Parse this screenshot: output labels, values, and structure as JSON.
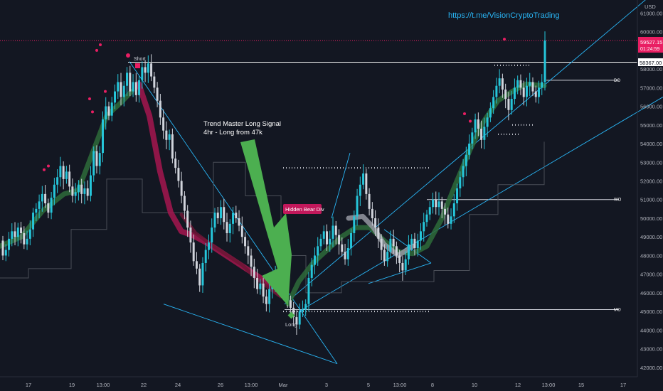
{
  "header": {
    "url": "https://t.me/VisionCryptoTrading",
    "currency": "USD"
  },
  "chart_data": {
    "type": "candlestick",
    "price_axis": {
      "ticks": [
        "61000.00",
        "60000.00",
        "59000.00",
        "58000.00",
        "57000.00",
        "56000.00",
        "55000.00",
        "54000.00",
        "53000.00",
        "52000.00",
        "51000.00",
        "50000.00",
        "49000.00",
        "48000.00",
        "47000.00",
        "46000.00",
        "45000.00",
        "44000.00",
        "43000.00",
        "42000.00"
      ],
      "range": [
        41500,
        61700
      ]
    },
    "time_axis": {
      "ticks": [
        "17",
        "19",
        "13:00",
        "22",
        "24",
        "26",
        "13:00",
        "Mar",
        "3",
        "5",
        "13:00",
        "8",
        "10",
        "12",
        "13:00",
        "15",
        "17"
      ]
    },
    "price_labels": {
      "last_price": "59527.15",
      "countdown": "01:24:59",
      "level": "58367.00"
    },
    "levels": [
      {
        "label": "DO",
        "price": 57400
      },
      {
        "label": "WO",
        "price": 51000
      },
      {
        "label": "MO",
        "price": 45100
      },
      {
        "label": "",
        "price": 58367
      }
    ],
    "annotations": {
      "short_label": "Short",
      "long_label": "Long",
      "signal_line1": "Trend Master Long Signal",
      "signal_line2": "4hr - Long from 47k",
      "divergence_label": "Hidden Bear Div"
    },
    "candles_ohlc": [
      [
        48800,
        48000
      ],
      [
        48000,
        48300
      ],
      [
        48300,
        48900
      ],
      [
        48900,
        49300
      ],
      [
        49300,
        49000
      ],
      [
        49000,
        49500
      ],
      [
        49500,
        49200
      ],
      [
        49200,
        48600
      ],
      [
        48600,
        48900
      ],
      [
        48900,
        49400
      ],
      [
        49400,
        50300
      ],
      [
        50300,
        50500
      ],
      [
        50500,
        50900
      ],
      [
        50900,
        51300
      ],
      [
        51300,
        50800
      ],
      [
        50800,
        50300
      ],
      [
        50300,
        51100
      ],
      [
        51100,
        51800
      ],
      [
        51800,
        52200
      ],
      [
        52200,
        52800
      ],
      [
        52800,
        52100
      ],
      [
        52100,
        52500
      ],
      [
        52500,
        51700
      ],
      [
        51700,
        51200
      ],
      [
        51200,
        51400
      ],
      [
        51400,
        51800
      ],
      [
        51800,
        51300
      ],
      [
        51300,
        51600
      ],
      [
        51600,
        51200
      ],
      [
        51200,
        52300
      ],
      [
        52300,
        53600
      ],
      [
        53600,
        52800
      ],
      [
        52800,
        53500
      ],
      [
        53500,
        55300
      ],
      [
        55300,
        56000
      ],
      [
        56000,
        55500
      ],
      [
        55500,
        56200
      ],
      [
        56200,
        56800
      ],
      [
        56800,
        57300
      ],
      [
        57300,
        56500
      ],
      [
        56500,
        57100
      ],
      [
        57100,
        57800
      ],
      [
        57800,
        56800
      ],
      [
        56800,
        57300
      ],
      [
        57300,
        56600
      ],
      [
        56600,
        57400
      ],
      [
        57400,
        58100
      ],
      [
        58100,
        57800
      ],
      [
        57800,
        58300
      ],
      [
        58300,
        57600
      ],
      [
        57600,
        57000
      ],
      [
        57000,
        56300
      ],
      [
        56300,
        55400
      ],
      [
        55400,
        54700
      ],
      [
        54700,
        54200
      ],
      [
        54200,
        54500
      ],
      [
        54500,
        53200
      ],
      [
        53200,
        52700
      ],
      [
        52700,
        52000
      ],
      [
        52000,
        51200
      ],
      [
        51200,
        50400
      ],
      [
        50400,
        49500
      ],
      [
        49500,
        48700
      ],
      [
        48700,
        47700
      ],
      [
        47700,
        47300
      ],
      [
        47300,
        46400
      ],
      [
        46400,
        47600
      ],
      [
        47600,
        48300
      ],
      [
        48300,
        48700
      ],
      [
        48700,
        49500
      ],
      [
        49500,
        50300
      ],
      [
        50300,
        50000
      ],
      [
        50000,
        50600
      ],
      [
        50600,
        49800
      ],
      [
        49800,
        49200
      ],
      [
        49200,
        49700
      ],
      [
        49700,
        50300
      ],
      [
        50300,
        50000
      ],
      [
        50000,
        49600
      ],
      [
        49600,
        49000
      ],
      [
        49000,
        48500
      ],
      [
        48500,
        48000
      ],
      [
        48000,
        47400
      ],
      [
        47400,
        46800
      ],
      [
        46800,
        46200
      ],
      [
        46200,
        46500
      ],
      [
        46500,
        45800
      ],
      [
        45800,
        45400
      ],
      [
        45400,
        46200
      ],
      [
        46200,
        46600
      ],
      [
        46600,
        47200
      ],
      [
        47200,
        47000
      ],
      [
        47000,
        46700
      ],
      [
        46700,
        46200
      ],
      [
        46200,
        45600
      ],
      [
        45600,
        45200
      ],
      [
        45200,
        44700
      ],
      [
        44700,
        44300
      ],
      [
        44300,
        45000
      ],
      [
        45000,
        45100
      ],
      [
        45100,
        45400
      ],
      [
        45400,
        46800
      ],
      [
        46800,
        47500
      ],
      [
        47500,
        48000
      ],
      [
        48000,
        48500
      ],
      [
        48500,
        48900
      ],
      [
        48900,
        49300
      ],
      [
        49300,
        48600
      ],
      [
        48600,
        48900
      ],
      [
        48900,
        49600
      ],
      [
        49600,
        49100
      ],
      [
        49100,
        48600
      ],
      [
        48600,
        48200
      ],
      [
        48200,
        47800
      ],
      [
        47800,
        48400
      ],
      [
        48400,
        49200
      ],
      [
        49200,
        50100
      ],
      [
        50100,
        51200
      ],
      [
        51200,
        51800
      ],
      [
        51800,
        52400
      ],
      [
        52400,
        51300
      ],
      [
        51300,
        50500
      ],
      [
        50500,
        50000
      ],
      [
        50000,
        49500
      ],
      [
        49500,
        48900
      ],
      [
        48900,
        48300
      ],
      [
        48300,
        47700
      ],
      [
        47700,
        48200
      ],
      [
        48200,
        48900
      ],
      [
        48900,
        48500
      ],
      [
        48500,
        48000
      ],
      [
        48000,
        47600
      ],
      [
        47600,
        47200
      ],
      [
        47200,
        47800
      ],
      [
        47800,
        48600
      ],
      [
        48600,
        48900
      ],
      [
        48900,
        48400
      ],
      [
        48400,
        48800
      ],
      [
        48800,
        49300
      ],
      [
        49300,
        49800
      ],
      [
        49800,
        50200
      ],
      [
        50200,
        50600
      ],
      [
        50600,
        51000
      ],
      [
        51000,
        50600
      ],
      [
        50600,
        50900
      ],
      [
        50900,
        50500
      ],
      [
        50500,
        50200
      ],
      [
        50200,
        49700
      ],
      [
        49700,
        50100
      ],
      [
        50100,
        50800
      ],
      [
        50800,
        51600
      ],
      [
        51600,
        52200
      ],
      [
        52200,
        52800
      ],
      [
        52800,
        53400
      ],
      [
        53400,
        54000
      ],
      [
        54000,
        54600
      ],
      [
        54600,
        55300
      ],
      [
        55300,
        54800
      ],
      [
        54800,
        54200
      ],
      [
        54200,
        54900
      ],
      [
        54900,
        55400
      ],
      [
        55400,
        55900
      ],
      [
        55900,
        56500
      ],
      [
        56500,
        57100
      ],
      [
        57100,
        57500
      ],
      [
        57500,
        56900
      ],
      [
        56900,
        56400
      ],
      [
        56400,
        55800
      ],
      [
        55800,
        56400
      ],
      [
        56400,
        57000
      ],
      [
        57000,
        57400
      ],
      [
        57400,
        57000
      ],
      [
        57000,
        56500
      ],
      [
        56500,
        57100
      ],
      [
        57100,
        57300
      ],
      [
        57300,
        56800
      ],
      [
        56800,
        56500
      ],
      [
        56500,
        57000
      ],
      [
        57000,
        57300
      ],
      [
        57300,
        59527
      ]
    ]
  }
}
